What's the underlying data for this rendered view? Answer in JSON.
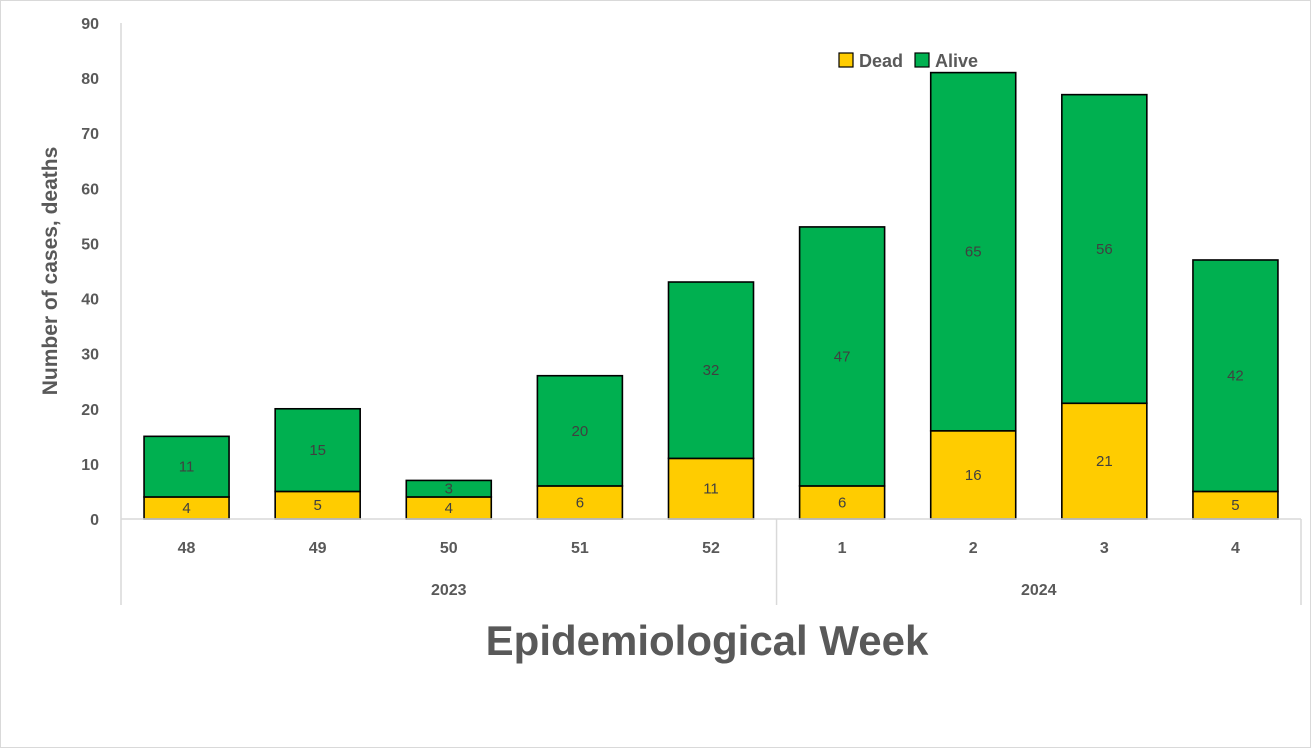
{
  "chart_data": {
    "type": "bar",
    "stacked": true,
    "categories": [
      "48",
      "49",
      "50",
      "51",
      "52",
      "1",
      "2",
      "3",
      "4"
    ],
    "category_groups": [
      {
        "label": "2023",
        "start": 0,
        "end": 4
      },
      {
        "label": "2024",
        "start": 5,
        "end": 8
      }
    ],
    "series": [
      {
        "name": "Dead",
        "color": "#FFCC00",
        "values": [
          4,
          5,
          4,
          6,
          11,
          6,
          16,
          21,
          5
        ]
      },
      {
        "name": "Alive",
        "color": "#00B050",
        "values": [
          11,
          15,
          3,
          20,
          32,
          47,
          65,
          56,
          42
        ]
      }
    ],
    "title": "",
    "xlabel": "Epidemiological Week",
    "ylabel": "Number of cases, deaths",
    "ylim": [
      0,
      90
    ],
    "yticks": [
      0,
      10,
      20,
      30,
      40,
      50,
      60,
      70,
      80,
      90
    ],
    "grid": false,
    "legend_position": "top-right",
    "data_labels": true
  }
}
